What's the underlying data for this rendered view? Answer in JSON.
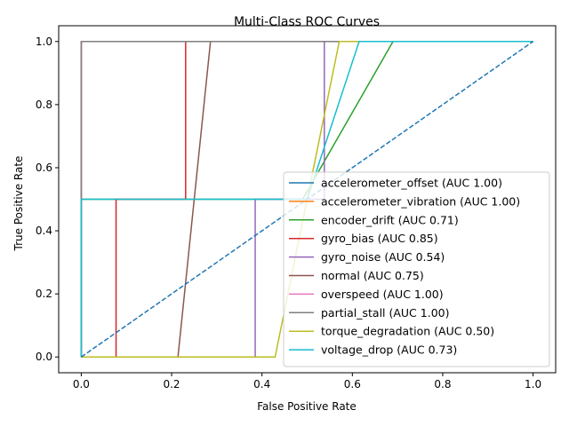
{
  "chart_data": {
    "type": "line",
    "title": "Multi-Class ROC Curves",
    "xlabel": "False Positive Rate",
    "ylabel": "True Positive Rate",
    "xlim": [
      -0.05,
      1.05
    ],
    "ylim": [
      -0.05,
      1.05
    ],
    "xticks": [
      "0.0",
      "0.2",
      "0.4",
      "0.6",
      "0.8",
      "1.0"
    ],
    "yticks": [
      "0.0",
      "0.2",
      "0.4",
      "0.6",
      "0.8",
      "1.0"
    ],
    "grid": false,
    "legend_position": "lower-right",
    "series": [
      {
        "name": "accelerometer_offset (AUC 1.00)",
        "color": "#1f77b4",
        "x": [
          0,
          0,
          1
        ],
        "y": [
          0,
          1,
          1
        ]
      },
      {
        "name": "accelerometer_vibration (AUC 1.00)",
        "color": "#ff7f0e",
        "x": [
          0,
          0,
          1
        ],
        "y": [
          0,
          1,
          1
        ]
      },
      {
        "name": "encoder_drift (AUC 0.71)",
        "color": "#2ca02c",
        "x": [
          0,
          0,
          0.49,
          0.69,
          1
        ],
        "y": [
          0,
          0.5,
          0.5,
          1,
          1
        ]
      },
      {
        "name": "gyro_bias (AUC 0.85)",
        "color": "#d62728",
        "x": [
          0,
          0,
          0.077,
          0.077,
          0.231,
          0.231,
          1
        ],
        "y": [
          0,
          0,
          0,
          0.5,
          0.5,
          1,
          1
        ]
      },
      {
        "name": "gyro_noise (AUC 0.54)",
        "color": "#9467bd",
        "x": [
          0,
          0.385,
          0.385,
          0.538,
          0.538,
          1
        ],
        "y": [
          0,
          0,
          0.5,
          0.5,
          1,
          1
        ]
      },
      {
        "name": "normal (AUC 0.75)",
        "color": "#8c564b",
        "x": [
          0,
          0.214,
          0.286,
          1
        ],
        "y": [
          0,
          0,
          1,
          1
        ]
      },
      {
        "name": "overspeed (AUC 1.00)",
        "color": "#e377c2",
        "x": [
          0,
          0,
          1
        ],
        "y": [
          0,
          1,
          1
        ]
      },
      {
        "name": "partial_stall (AUC 1.00)",
        "color": "#7f7f7f",
        "x": [
          0,
          0,
          1
        ],
        "y": [
          0,
          1,
          1
        ]
      },
      {
        "name": "torque_degradation (AUC 0.50)",
        "color": "#bcbd22",
        "x": [
          0,
          0.429,
          0.571,
          1
        ],
        "y": [
          0,
          0,
          1,
          1
        ]
      },
      {
        "name": "voltage_drop (AUC 0.73)",
        "color": "#17becf",
        "x": [
          0,
          0,
          0.5,
          0.615,
          1
        ],
        "y": [
          0,
          0.5,
          0.5,
          1,
          1
        ]
      }
    ],
    "reference_line": {
      "color": "#1f77b4",
      "style": "dashed",
      "x": [
        0,
        1
      ],
      "y": [
        0,
        1
      ]
    }
  }
}
